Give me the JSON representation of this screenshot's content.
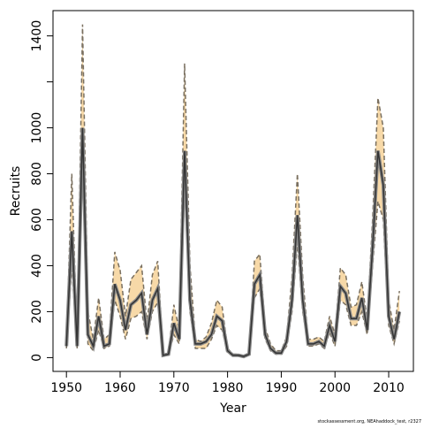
{
  "chart_data": {
    "type": "band-line",
    "xlabel": "Year",
    "ylabel": "Recruits",
    "footnote": "stockassessment.org, NEAhaddock_test, r2327",
    "x": [
      1950,
      1951,
      1952,
      1953,
      1954,
      1955,
      1956,
      1957,
      1958,
      1959,
      1960,
      1961,
      1962,
      1963,
      1964,
      1965,
      1966,
      1967,
      1968,
      1969,
      1970,
      1971,
      1972,
      1973,
      1974,
      1975,
      1976,
      1977,
      1978,
      1979,
      1980,
      1981,
      1982,
      1983,
      1984,
      1985,
      1986,
      1987,
      1988,
      1989,
      1990,
      1991,
      1992,
      1993,
      1994,
      1995,
      1996,
      1997,
      1998,
      1999,
      2000,
      2001,
      2002,
      2003,
      2004,
      2005,
      2006,
      2007,
      2008,
      2009,
      2010,
      2011,
      2012
    ],
    "values": [
      50,
      550,
      50,
      1000,
      100,
      50,
      180,
      50,
      60,
      320,
      250,
      120,
      230,
      250,
      280,
      100,
      250,
      300,
      10,
      15,
      150,
      80,
      900,
      250,
      60,
      60,
      70,
      100,
      180,
      160,
      30,
      10,
      10,
      5,
      15,
      320,
      360,
      100,
      40,
      20,
      20,
      70,
      250,
      620,
      250,
      60,
      60,
      70,
      50,
      140,
      70,
      310,
      280,
      170,
      170,
      260,
      120,
      480,
      900,
      750,
      180,
      80,
      200
    ],
    "lower": [
      40,
      400,
      40,
      850,
      60,
      30,
      120,
      40,
      50,
      250,
      180,
      80,
      170,
      180,
      200,
      80,
      200,
      240,
      8,
      10,
      100,
      60,
      750,
      200,
      40,
      40,
      40,
      80,
      140,
      120,
      20,
      8,
      8,
      4,
      10,
      260,
      300,
      80,
      30,
      15,
      15,
      50,
      200,
      500,
      200,
      50,
      50,
      60,
      40,
      110,
      50,
      250,
      230,
      140,
      140,
      200,
      100,
      400,
      680,
      600,
      140,
      60,
      160
    ],
    "upper": [
      60,
      800,
      60,
      1450,
      200,
      80,
      260,
      80,
      100,
      460,
      380,
      180,
      340,
      370,
      400,
      150,
      360,
      420,
      15,
      20,
      230,
      120,
      1280,
      400,
      80,
      70,
      90,
      150,
      250,
      220,
      40,
      15,
      15,
      8,
      20,
      420,
      450,
      130,
      60,
      30,
      30,
      90,
      350,
      800,
      350,
      80,
      80,
      90,
      70,
      180,
      100,
      390,
      360,
      220,
      230,
      330,
      160,
      600,
      1130,
      1000,
      250,
      120,
      290
    ],
    "band_color": "#f7d9a8",
    "line_color": "#333333",
    "bound_color": "#7a7060",
    "xlim": [
      1947.5,
      2014.6
    ],
    "ylim": [
      -60,
      1510
    ],
    "xticks": [
      1950,
      1960,
      1970,
      1980,
      1990,
      2000,
      2010
    ],
    "yticks": [
      0,
      200,
      400,
      600,
      800,
      1000,
      {
        "value": 1200,
        "label": null
      },
      1400
    ]
  }
}
